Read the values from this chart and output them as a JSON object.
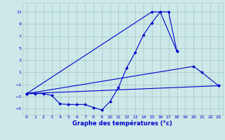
{
  "title": "Graphe des températures (°c)",
  "bg_color": "#cce8e8",
  "grid_color": "#aacccc",
  "line_color": "#0000cc",
  "xlim": [
    -0.5,
    23.5
  ],
  "ylim": [
    -6,
    12.5
  ],
  "yticks": [
    -5,
    -3,
    -1,
    1,
    3,
    5,
    7,
    9,
    11
  ],
  "xticks": [
    0,
    1,
    2,
    3,
    4,
    5,
    6,
    7,
    8,
    9,
    10,
    11,
    12,
    13,
    14,
    15,
    16,
    17,
    18,
    19,
    20,
    21,
    22,
    23
  ],
  "series": [
    {
      "x": [
        0,
        1,
        2,
        3,
        4,
        5,
        6,
        7,
        8,
        9,
        10,
        11,
        12,
        13,
        14,
        15,
        16,
        17,
        18
      ],
      "y": [
        -2.5,
        -2.5,
        -2.5,
        -2.8,
        -4.2,
        -4.3,
        -4.3,
        -4.3,
        -4.8,
        -5.2,
        -3.8,
        -1.5,
        1.8,
        4.3,
        7.2,
        9.2,
        11.0,
        11.0,
        4.5
      ]
    },
    {
      "x": [
        0,
        15,
        16,
        18
      ],
      "y": [
        -2.5,
        11.0,
        11.0,
        4.5
      ]
    },
    {
      "x": [
        0,
        20,
        21,
        23
      ],
      "y": [
        -2.5,
        2.0,
        1.0,
        -1.2
      ]
    },
    {
      "comment": "straight line from 0,-2.5 to 23,-1.2",
      "x": [
        0,
        23
      ],
      "y": [
        -2.5,
        -1.2
      ]
    }
  ]
}
